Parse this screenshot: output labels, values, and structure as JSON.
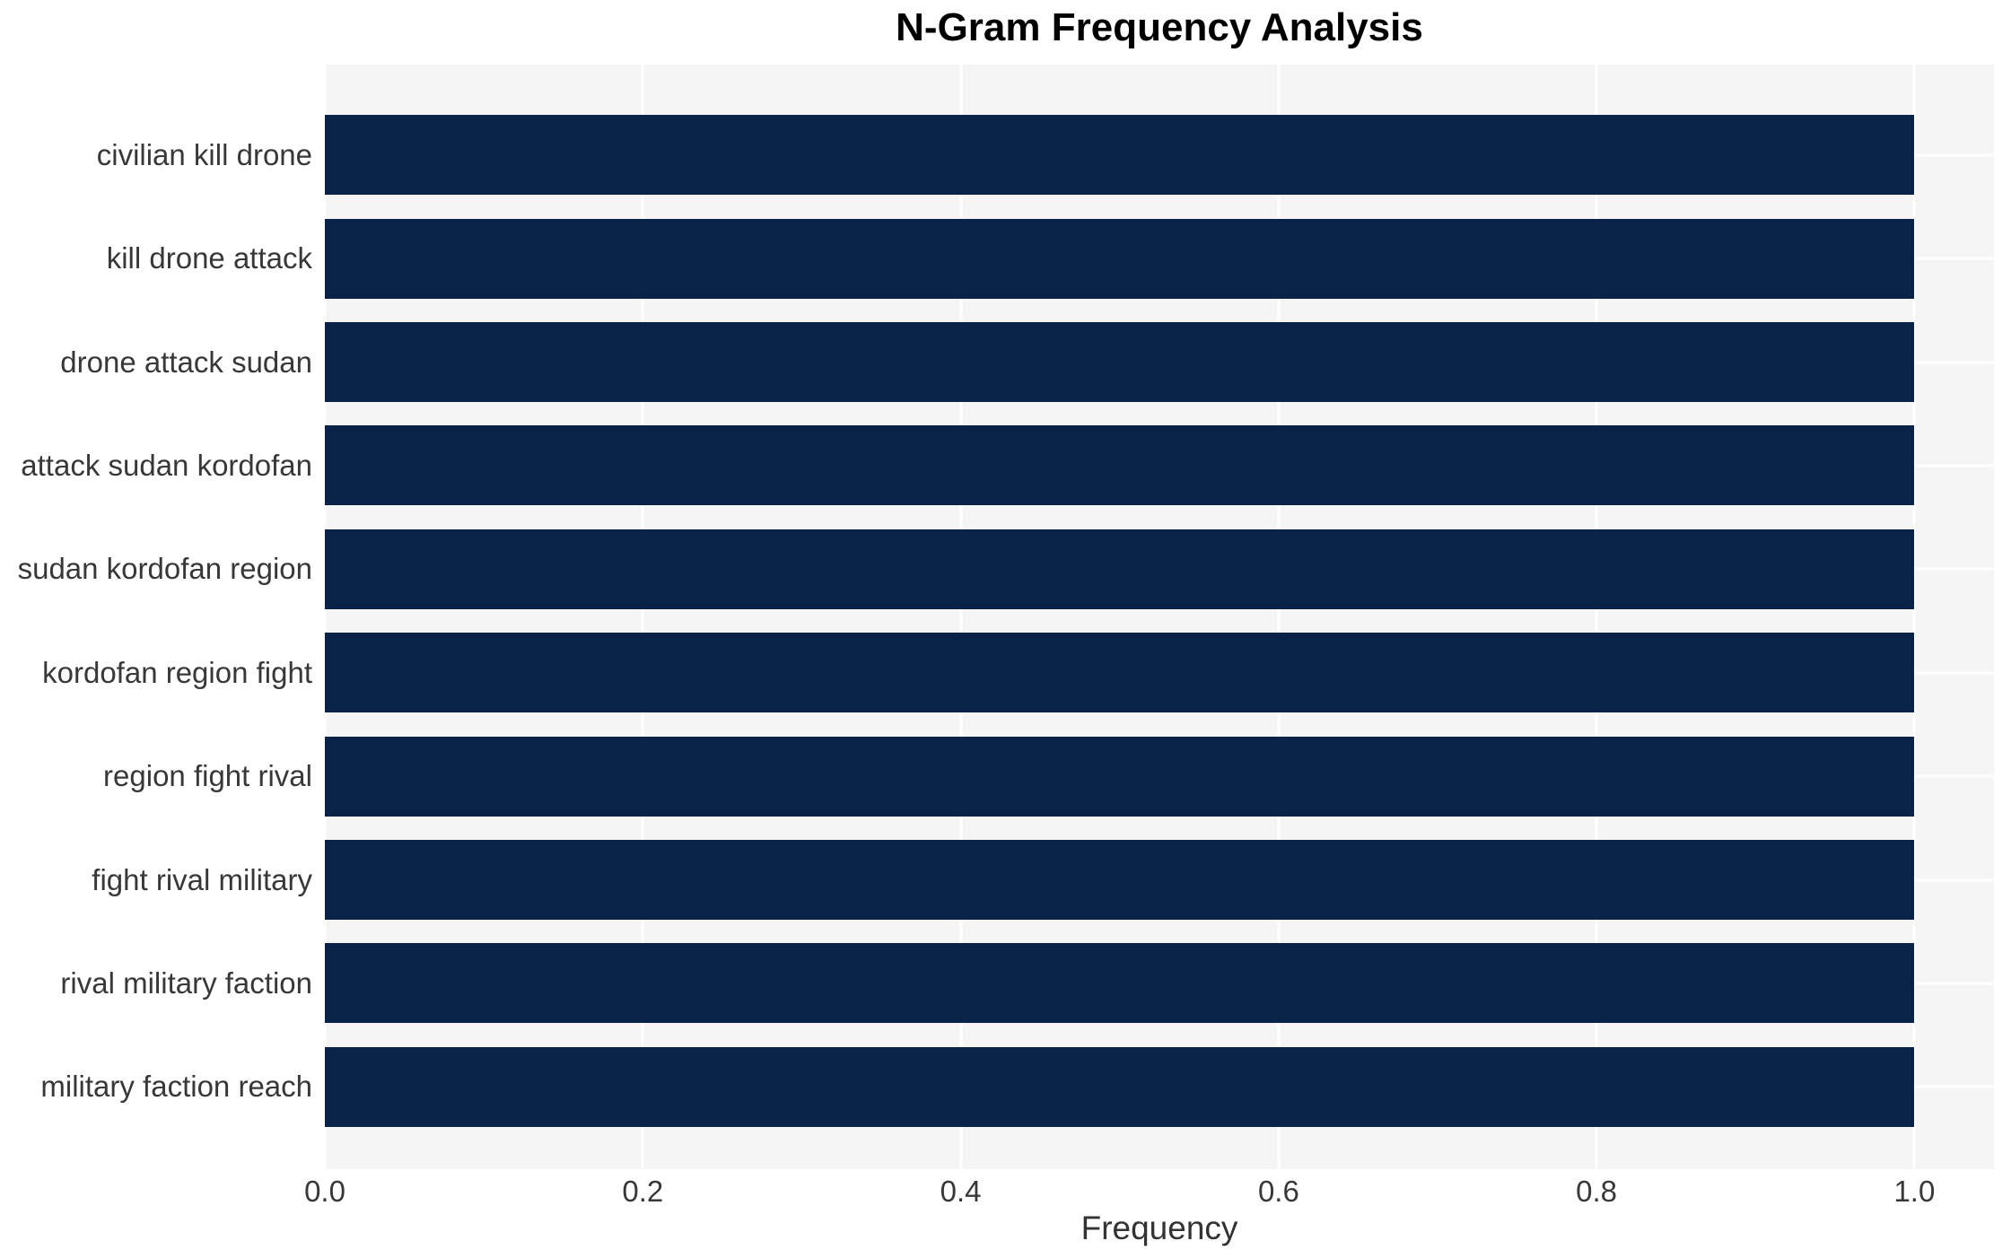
{
  "chart_data": {
    "type": "bar",
    "orientation": "horizontal",
    "title": "N-Gram Frequency Analysis",
    "xlabel": "Frequency",
    "ylabel": "",
    "categories": [
      "civilian kill drone",
      "kill drone attack",
      "drone attack sudan",
      "attack sudan kordofan",
      "sudan kordofan region",
      "kordofan region fight",
      "region fight rival",
      "fight rival military",
      "rival military faction",
      "military faction reach"
    ],
    "values": [
      1.0,
      1.0,
      1.0,
      1.0,
      1.0,
      1.0,
      1.0,
      1.0,
      1.0,
      1.0
    ],
    "xlim": [
      0.0,
      1.05
    ],
    "xticks": [
      0.0,
      0.2,
      0.4,
      0.6,
      0.8,
      1.0
    ],
    "xtick_labels": [
      "0.0",
      "0.2",
      "0.4",
      "0.6",
      "0.8",
      "1.0"
    ],
    "grid": true,
    "legend": false,
    "colors": {
      "bar": "#082248",
      "plot_background": "#f5f5f6",
      "gridline": "#ffffff",
      "tick_text": "#383838",
      "title_text": "#000000"
    }
  }
}
